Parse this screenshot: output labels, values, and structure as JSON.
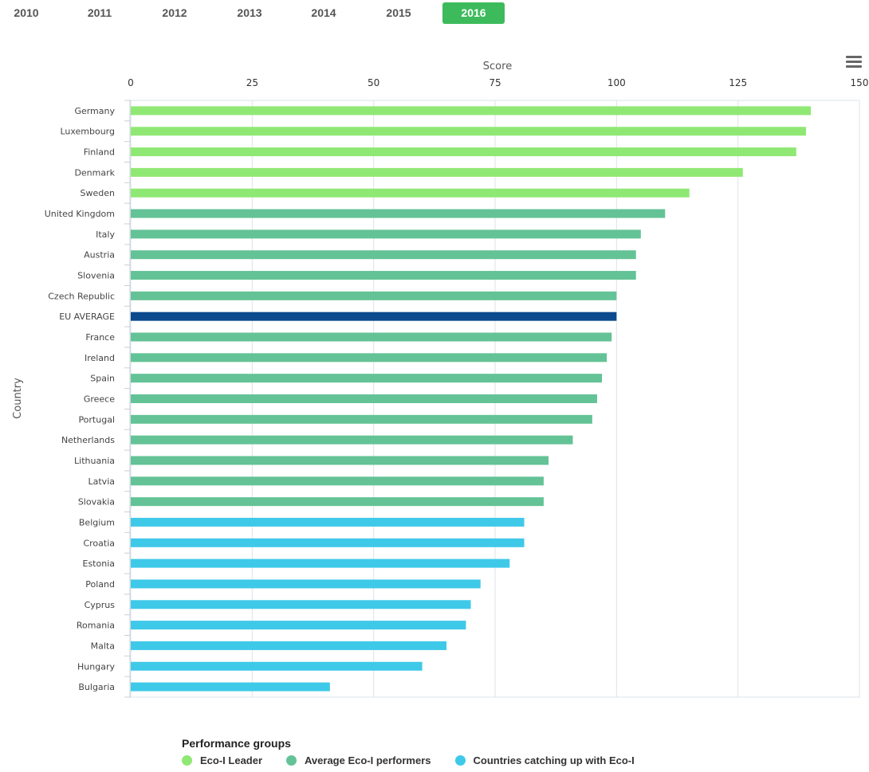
{
  "year_tabs": [
    "2010",
    "2011",
    "2012",
    "2013",
    "2014",
    "2015",
    "2016"
  ],
  "active_year": "2016",
  "colors": {
    "leader": "#90e874",
    "average": "#64c396",
    "catching_up": "#3fc9e9",
    "eu_average": "#0b4a8c",
    "active_tab": "#3dbb5c"
  },
  "legend": {
    "title": "Performance groups",
    "items": [
      {
        "label": "Eco-I Leader",
        "color": "#90e874"
      },
      {
        "label": "Average Eco-I performers",
        "color": "#64c396"
      },
      {
        "label": "Countries catching up with Eco-I",
        "color": "#3fc9e9"
      }
    ]
  },
  "chart_data": {
    "type": "bar",
    "orientation": "horizontal",
    "xlabel": "Score",
    "ylabel": "Country",
    "xlim": [
      0,
      150
    ],
    "x_ticks": [
      0,
      25,
      50,
      75,
      100,
      125,
      150
    ],
    "grid": true,
    "categories": [
      "Germany",
      "Luxembourg",
      "Finland",
      "Denmark",
      "Sweden",
      "United Kingdom",
      "Italy",
      "Austria",
      "Slovenia",
      "Czech Republic",
      "EU AVERAGE",
      "France",
      "Ireland",
      "Spain",
      "Greece",
      "Portugal",
      "Netherlands",
      "Lithuania",
      "Latvia",
      "Slovakia",
      "Belgium",
      "Croatia",
      "Estonia",
      "Poland",
      "Cyprus",
      "Romania",
      "Malta",
      "Hungary",
      "Bulgaria"
    ],
    "values": [
      140,
      139,
      137,
      126,
      115,
      110,
      105,
      104,
      104,
      100,
      100,
      99,
      98,
      97,
      96,
      95,
      91,
      86,
      85,
      85,
      81,
      81,
      78,
      72,
      70,
      69,
      65,
      60,
      41
    ],
    "groups": [
      "leader",
      "leader",
      "leader",
      "leader",
      "leader",
      "average",
      "average",
      "average",
      "average",
      "average",
      "eu_average",
      "average",
      "average",
      "average",
      "average",
      "average",
      "average",
      "average",
      "average",
      "average",
      "catching_up",
      "catching_up",
      "catching_up",
      "catching_up",
      "catching_up",
      "catching_up",
      "catching_up",
      "catching_up",
      "catching_up"
    ],
    "legend_position": "bottom"
  }
}
